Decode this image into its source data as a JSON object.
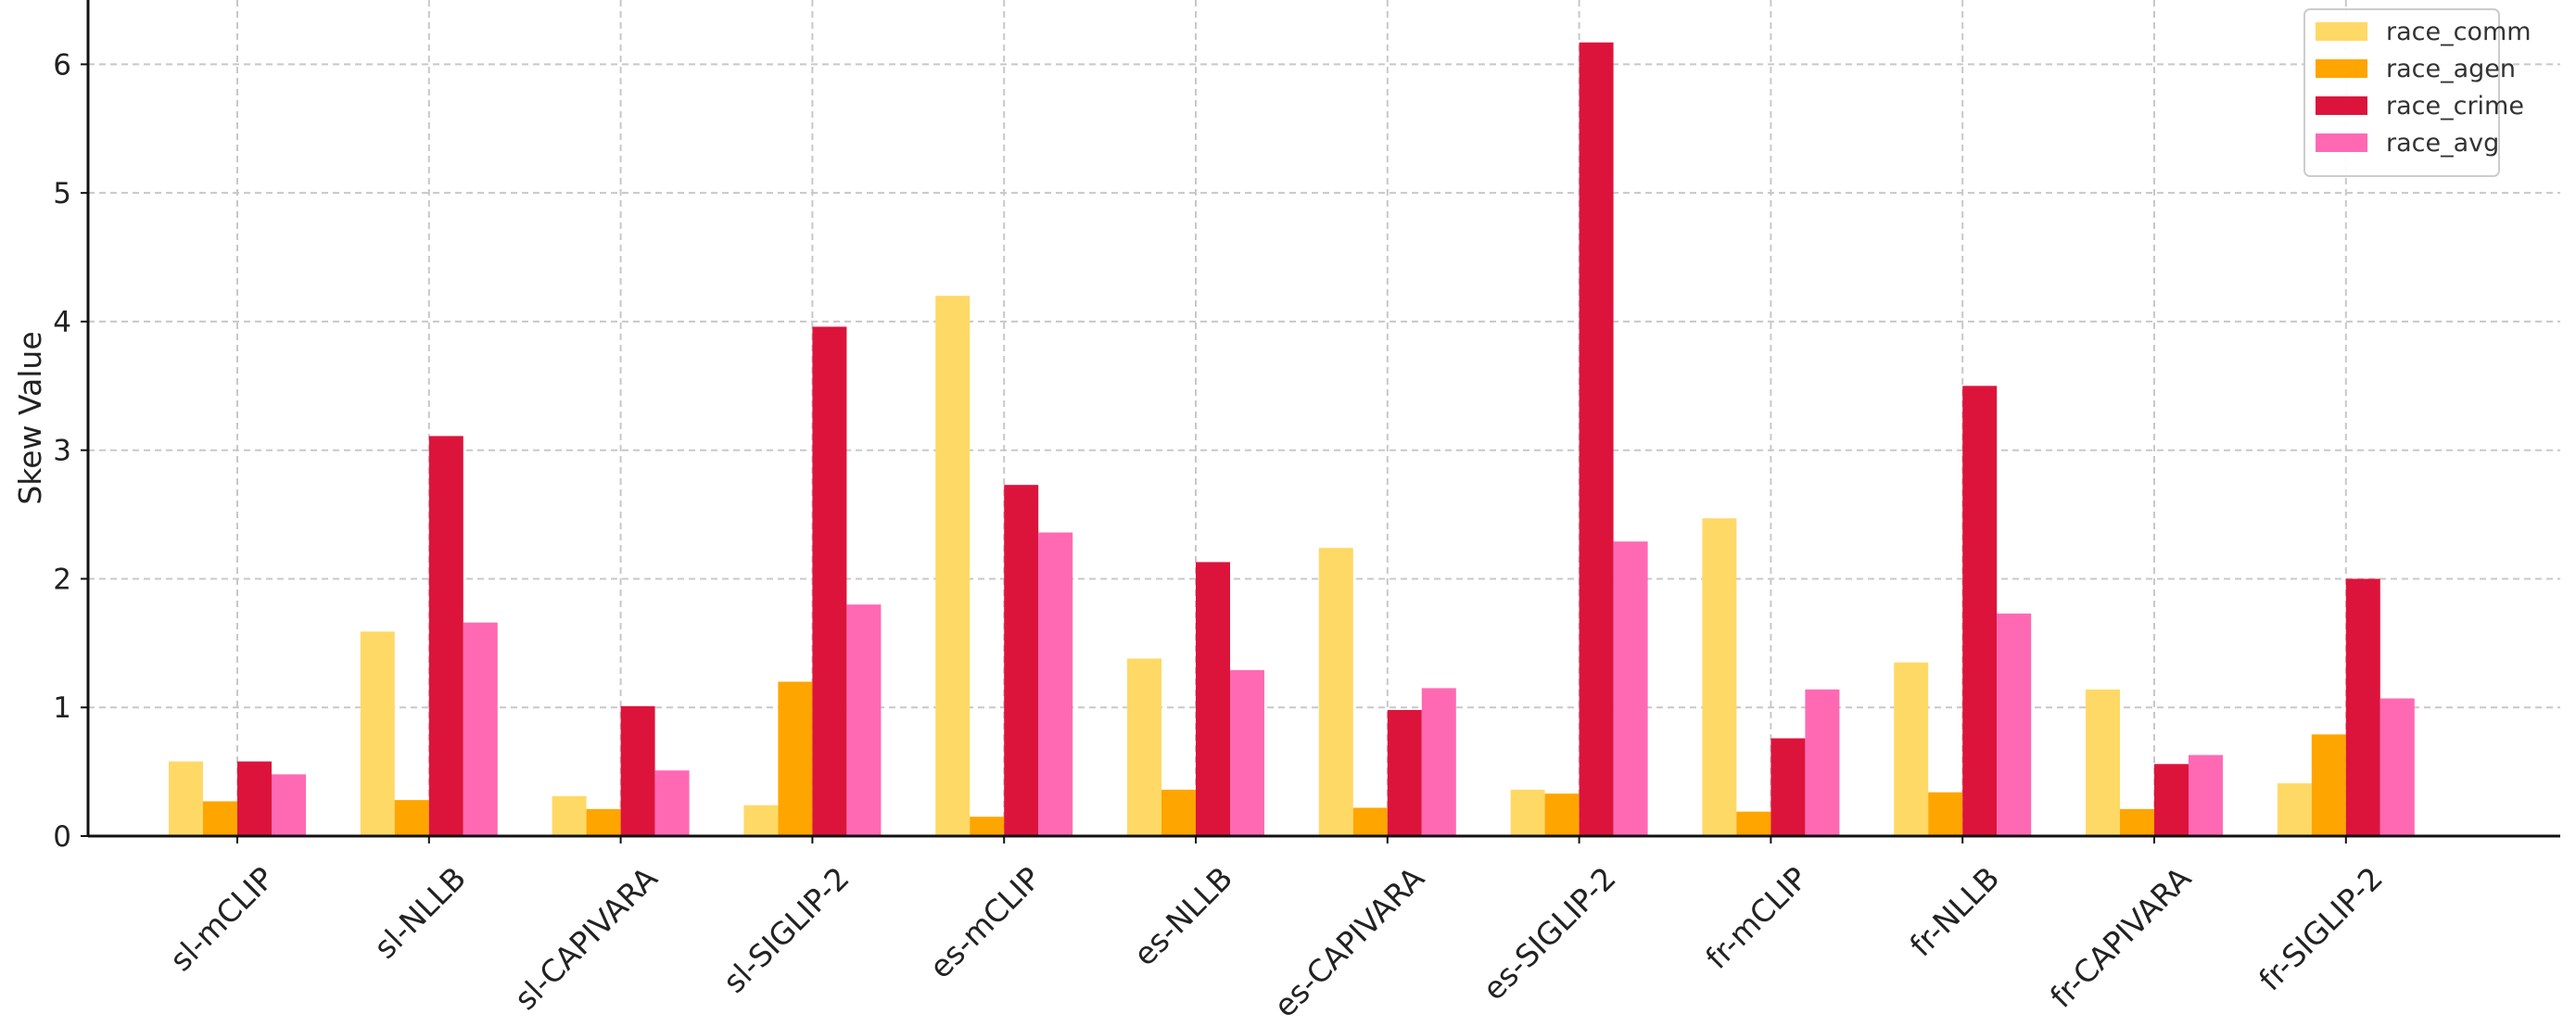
{
  "chart_data": {
    "type": "bar",
    "ylabel": "Skew Value",
    "xlabel": "",
    "ylim": [
      0,
      6.5
    ],
    "yticks": [
      0,
      1,
      2,
      3,
      4,
      5,
      6
    ],
    "grid": true,
    "legend_position": "top-right",
    "categories": [
      "sl-mCLIP",
      "sl-NLLB",
      "sl-CAPIVARA",
      "sl-SIGLIP-2",
      "es-mCLIP",
      "es-NLLB",
      "es-CAPIVARA",
      "es-SIGLIP-2",
      "fr-mCLIP",
      "fr-NLLB",
      "fr-CAPIVARA",
      "fr-SIGLIP-2"
    ],
    "series": [
      {
        "name": "race_comm",
        "color": "#FFD966",
        "values": [
          0.58,
          1.59,
          0.31,
          0.24,
          4.2,
          1.38,
          2.24,
          0.36,
          2.47,
          1.35,
          1.14,
          0.41
        ]
      },
      {
        "name": "race_agen",
        "color": "#FFA500",
        "values": [
          0.27,
          0.28,
          0.21,
          1.2,
          0.15,
          0.36,
          0.22,
          0.33,
          0.19,
          0.34,
          0.21,
          0.79
        ]
      },
      {
        "name": "race_crime",
        "color": "#DC143C",
        "values": [
          0.58,
          3.11,
          1.01,
          3.96,
          2.73,
          2.13,
          0.98,
          6.17,
          0.76,
          3.5,
          0.56,
          2.0
        ]
      },
      {
        "name": "race_avg",
        "color": "#FF69B4",
        "values": [
          0.48,
          1.66,
          0.51,
          1.8,
          2.36,
          1.29,
          1.15,
          2.29,
          1.14,
          1.73,
          0.63,
          1.07
        ]
      }
    ]
  }
}
